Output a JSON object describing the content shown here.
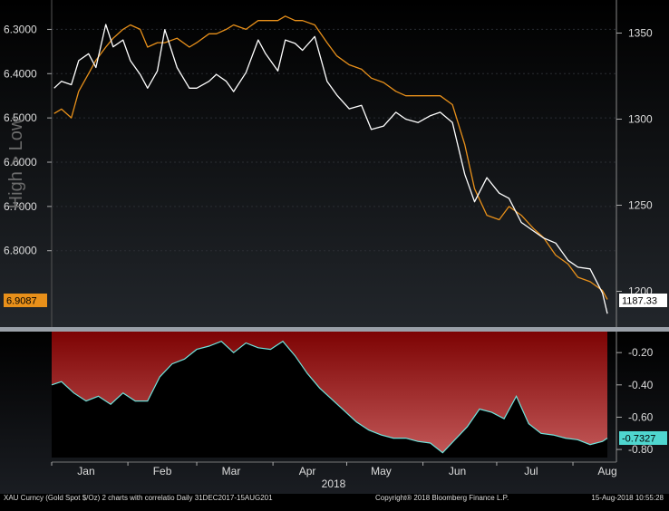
{
  "chart_data": [
    {
      "type": "line",
      "ylabel": "High > Low",
      "y_left_ticks": [
        "6.3000",
        "6.4000",
        "6.5000",
        "6.6000",
        "6.7000",
        "6.8000"
      ],
      "y_right_ticks": [
        "1350",
        "1300",
        "1250",
        "1200"
      ],
      "last_value_left": "6.9087",
      "last_value_right": "1187.33",
      "ylim_left": [
        6.25,
        6.95
      ],
      "ylim_right": [
        1185,
        1365
      ],
      "series": [
        {
          "color": "#e8901a",
          "axis": "left",
          "x": [
            "2018-01-02",
            "2018-01-05",
            "2018-01-09",
            "2018-01-12",
            "2018-01-16",
            "2018-01-19",
            "2018-01-23",
            "2018-01-26",
            "2018-01-30",
            "2018-02-02",
            "2018-02-06",
            "2018-02-09",
            "2018-02-13",
            "2018-02-16",
            "2018-02-21",
            "2018-02-26",
            "2018-03-01",
            "2018-03-06",
            "2018-03-09",
            "2018-03-13",
            "2018-03-16",
            "2018-03-21",
            "2018-03-26",
            "2018-03-29",
            "2018-04-03",
            "2018-04-06",
            "2018-04-10",
            "2018-04-13",
            "2018-04-18",
            "2018-04-23",
            "2018-04-27",
            "2018-05-02",
            "2018-05-07",
            "2018-05-11",
            "2018-05-16",
            "2018-05-21",
            "2018-05-25",
            "2018-05-30",
            "2018-06-04",
            "2018-06-08",
            "2018-06-13",
            "2018-06-18",
            "2018-06-22",
            "2018-06-27",
            "2018-07-02",
            "2018-07-06",
            "2018-07-11",
            "2018-07-16",
            "2018-07-20",
            "2018-07-25",
            "2018-07-30",
            "2018-08-03",
            "2018-08-08",
            "2018-08-13",
            "2018-08-15"
          ],
          "values": [
            6.49,
            6.48,
            6.5,
            6.44,
            6.4,
            6.37,
            6.34,
            6.32,
            6.3,
            6.29,
            6.3,
            6.34,
            6.33,
            6.33,
            6.32,
            6.34,
            6.33,
            6.31,
            6.31,
            6.3,
            6.29,
            6.3,
            6.28,
            6.28,
            6.28,
            6.27,
            6.28,
            6.28,
            6.29,
            6.33,
            6.36,
            6.38,
            6.39,
            6.41,
            6.42,
            6.44,
            6.45,
            6.45,
            6.45,
            6.45,
            6.47,
            6.56,
            6.66,
            6.72,
            6.73,
            6.7,
            6.72,
            6.75,
            6.77,
            6.81,
            6.83,
            6.86,
            6.87,
            6.89,
            6.91
          ]
        },
        {
          "color": "#ffffff",
          "axis": "right",
          "x": [
            "2018-01-02",
            "2018-01-05",
            "2018-01-09",
            "2018-01-12",
            "2018-01-16",
            "2018-01-19",
            "2018-01-23",
            "2018-01-26",
            "2018-01-30",
            "2018-02-02",
            "2018-02-06",
            "2018-02-09",
            "2018-02-13",
            "2018-02-16",
            "2018-02-21",
            "2018-02-26",
            "2018-03-01",
            "2018-03-06",
            "2018-03-09",
            "2018-03-13",
            "2018-03-16",
            "2018-03-21",
            "2018-03-26",
            "2018-03-29",
            "2018-04-03",
            "2018-04-06",
            "2018-04-10",
            "2018-04-13",
            "2018-04-18",
            "2018-04-23",
            "2018-04-27",
            "2018-05-02",
            "2018-05-07",
            "2018-05-11",
            "2018-05-16",
            "2018-05-21",
            "2018-05-25",
            "2018-05-30",
            "2018-06-04",
            "2018-06-08",
            "2018-06-13",
            "2018-06-18",
            "2018-06-22",
            "2018-06-27",
            "2018-07-02",
            "2018-07-06",
            "2018-07-11",
            "2018-07-16",
            "2018-07-20",
            "2018-07-25",
            "2018-07-30",
            "2018-08-03",
            "2018-08-08",
            "2018-08-13",
            "2018-08-15"
          ],
          "values": [
            1318,
            1322,
            1320,
            1334,
            1338,
            1330,
            1355,
            1342,
            1346,
            1334,
            1326,
            1318,
            1328,
            1352,
            1330,
            1318,
            1318,
            1322,
            1326,
            1322,
            1316,
            1327,
            1346,
            1338,
            1328,
            1346,
            1344,
            1340,
            1348,
            1322,
            1314,
            1306,
            1308,
            1294,
            1296,
            1304,
            1300,
            1298,
            1302,
            1304,
            1298,
            1268,
            1252,
            1266,
            1257,
            1254,
            1240,
            1235,
            1231,
            1228,
            1218,
            1214,
            1213,
            1199,
            1187
          ]
        }
      ]
    },
    {
      "type": "area",
      "y_ticks": [
        "-0.20",
        "-0.40",
        "-0.60",
        "-0.80"
      ],
      "ylim": [
        -0.85,
        -0.07
      ],
      "last_value": "-0.7327",
      "x": [
        "2018-01-01",
        "2018-01-05",
        "2018-01-10",
        "2018-01-15",
        "2018-01-20",
        "2018-01-25",
        "2018-01-30",
        "2018-02-04",
        "2018-02-09",
        "2018-02-14",
        "2018-02-19",
        "2018-02-24",
        "2018-03-01",
        "2018-03-06",
        "2018-03-11",
        "2018-03-16",
        "2018-03-21",
        "2018-03-26",
        "2018-03-31",
        "2018-04-05",
        "2018-04-10",
        "2018-04-15",
        "2018-04-20",
        "2018-04-25",
        "2018-04-30",
        "2018-05-05",
        "2018-05-10",
        "2018-05-15",
        "2018-05-20",
        "2018-05-25",
        "2018-05-30",
        "2018-06-04",
        "2018-06-09",
        "2018-06-14",
        "2018-06-19",
        "2018-06-24",
        "2018-06-29",
        "2018-07-04",
        "2018-07-09",
        "2018-07-14",
        "2018-07-19",
        "2018-07-24",
        "2018-07-29",
        "2018-08-03",
        "2018-08-08",
        "2018-08-13",
        "2018-08-15"
      ],
      "values": [
        -0.4,
        -0.38,
        -0.45,
        -0.5,
        -0.47,
        -0.52,
        -0.45,
        -0.5,
        -0.5,
        -0.35,
        -0.27,
        -0.24,
        -0.18,
        -0.16,
        -0.13,
        -0.2,
        -0.14,
        -0.17,
        -0.18,
        -0.13,
        -0.22,
        -0.33,
        -0.42,
        -0.49,
        -0.56,
        -0.63,
        -0.68,
        -0.71,
        -0.73,
        -0.73,
        -0.75,
        -0.76,
        -0.82,
        -0.74,
        -0.66,
        -0.55,
        -0.57,
        -0.61,
        -0.47,
        -0.64,
        -0.7,
        -0.71,
        -0.73,
        -0.74,
        -0.77,
        -0.75,
        -0.73
      ]
    }
  ],
  "xaxis": {
    "months": [
      "Jan",
      "Feb",
      "Mar",
      "Apr",
      "May",
      "Jun",
      "Jul",
      "Aug"
    ],
    "year": "2018"
  },
  "footer": {
    "left": "XAU Curncy (Gold Spot  $/Oz) 2 charts with correlatio  Daily 31DEC2017-15AUG201",
    "mid": "Copyright® 2018 Bloomberg Finance L.P.",
    "right": "15-Aug-2018 10:55:28"
  }
}
